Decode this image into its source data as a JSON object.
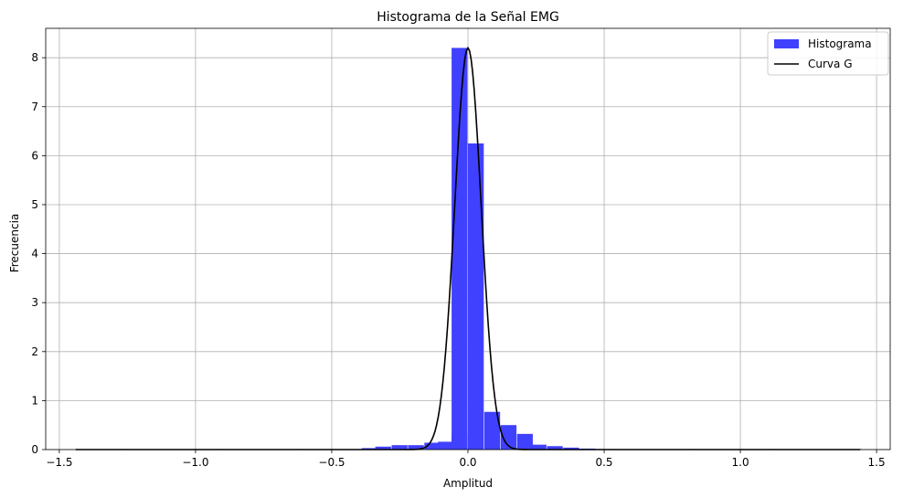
{
  "chart_data": {
    "type": "histogram",
    "title": "Histograma de la Señal EMG",
    "xlabel": "Amplitud",
    "ylabel": "Frecuencia",
    "xlim": [
      -1.55,
      1.55
    ],
    "ylim": [
      0,
      8.6
    ],
    "grid": true,
    "legend_position": "top-right",
    "x_ticks": [
      -1.5,
      -1.0,
      -0.5,
      0.0,
      0.5,
      1.0,
      1.5
    ],
    "x_tick_labels": [
      "−1.5",
      "−1.0",
      "−0.5",
      "0.0",
      "0.5",
      "1.0",
      "1.5"
    ],
    "y_ticks": [
      0,
      1,
      2,
      3,
      4,
      5,
      6,
      7,
      8
    ],
    "y_tick_labels": [
      "0",
      "1",
      "2",
      "3",
      "4",
      "5",
      "6",
      "7",
      "8"
    ],
    "series": [
      {
        "name": "Histograma",
        "kind": "bars",
        "color": "#4040ff",
        "bin_width": 0.058,
        "bins": [
          {
            "x0": -1.44,
            "height": 0.01
          },
          {
            "x0": -1.38,
            "height": 0.01
          },
          {
            "x0": -1.32,
            "height": 0.01
          },
          {
            "x0": -1.27,
            "height": 0.01
          },
          {
            "x0": -1.21,
            "height": 0.01
          },
          {
            "x0": -1.15,
            "height": 0.01
          },
          {
            "x0": -1.09,
            "height": 0.01
          },
          {
            "x0": -1.03,
            "height": 0.01
          },
          {
            "x0": -0.97,
            "height": 0.01
          },
          {
            "x0": -0.92,
            "height": 0.01
          },
          {
            "x0": -0.86,
            "height": 0.01
          },
          {
            "x0": -0.8,
            "height": 0.01
          },
          {
            "x0": -0.74,
            "height": 0.01
          },
          {
            "x0": -0.68,
            "height": 0.01
          },
          {
            "x0": -0.63,
            "height": 0.01
          },
          {
            "x0": -0.57,
            "height": 0.01
          },
          {
            "x0": -0.51,
            "height": 0.01
          },
          {
            "x0": -0.45,
            "height": 0.01
          },
          {
            "x0": -0.39,
            "height": 0.03
          },
          {
            "x0": -0.34,
            "height": 0.06
          },
          {
            "x0": -0.28,
            "height": 0.09
          },
          {
            "x0": -0.22,
            "height": 0.09
          },
          {
            "x0": -0.16,
            "height": 0.14
          },
          {
            "x0": -0.11,
            "height": 0.16
          },
          {
            "x0": -0.06,
            "height": 0.33
          },
          {
            "x0": -0.06,
            "height": 8.2
          },
          {
            "x0": 0.0,
            "height": 6.25
          },
          {
            "x0": 0.06,
            "height": 0.77
          },
          {
            "x0": 0.12,
            "height": 0.5
          },
          {
            "x0": 0.18,
            "height": 0.32
          },
          {
            "x0": 0.23,
            "height": 0.1
          },
          {
            "x0": 0.29,
            "height": 0.07
          },
          {
            "x0": 0.35,
            "height": 0.04
          },
          {
            "x0": 0.41,
            "height": 0.02
          },
          {
            "x0": 0.47,
            "height": 0.01
          },
          {
            "x0": 0.52,
            "height": 0.01
          },
          {
            "x0": 0.58,
            "height": 0.01
          },
          {
            "x0": 0.64,
            "height": 0.01
          },
          {
            "x0": 0.7,
            "height": 0.01
          },
          {
            "x0": 0.76,
            "height": 0.01
          },
          {
            "x0": 0.81,
            "height": 0.01
          },
          {
            "x0": 0.87,
            "height": 0.01
          },
          {
            "x0": 0.93,
            "height": 0.01
          },
          {
            "x0": 0.99,
            "height": 0.01
          },
          {
            "x0": 1.05,
            "height": 0.01
          },
          {
            "x0": 1.1,
            "height": 0.01
          },
          {
            "x0": 1.16,
            "height": 0.01
          },
          {
            "x0": 1.22,
            "height": 0.01
          },
          {
            "x0": 1.28,
            "height": 0.01
          },
          {
            "x0": 1.34,
            "height": 0.01
          },
          {
            "x0": 1.39,
            "height": 0.01
          }
        ]
      },
      {
        "name": "Curva G",
        "kind": "line",
        "color": "#000000",
        "model": "gaussian",
        "peak": 8.2,
        "mean": 0.0,
        "std": 0.0487,
        "x_range": [
          -1.44,
          1.44
        ]
      }
    ]
  }
}
